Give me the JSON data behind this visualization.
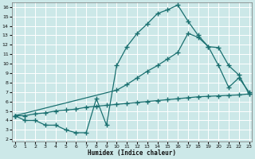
{
  "xlabel": "Humidex (Indice chaleur)",
  "bg_color": "#cce8e8",
  "grid_color": "#ffffff",
  "line_color": "#1a7070",
  "xlim": [
    -0.3,
    23.3
  ],
  "ylim": [
    1.8,
    16.5
  ],
  "xticks": [
    0,
    1,
    2,
    3,
    4,
    5,
    6,
    7,
    8,
    9,
    10,
    11,
    12,
    13,
    14,
    15,
    16,
    17,
    18,
    19,
    20,
    21,
    22,
    23
  ],
  "yticks": [
    2,
    3,
    4,
    5,
    6,
    7,
    8,
    9,
    10,
    11,
    12,
    13,
    14,
    15,
    16
  ],
  "line1_x": [
    0,
    1,
    2,
    3,
    4,
    5,
    6,
    7,
    8,
    9,
    10,
    11,
    12,
    13,
    14,
    15,
    16,
    17,
    18,
    19,
    20,
    21,
    22,
    23
  ],
  "line1_y": [
    4.5,
    4.0,
    4.0,
    3.5,
    3.5,
    3.0,
    2.7,
    2.7,
    6.3,
    3.5,
    9.8,
    11.8,
    13.2,
    14.2,
    15.3,
    15.7,
    16.2,
    14.5,
    13.0,
    11.8,
    9.8,
    7.5,
    8.5,
    7.0
  ],
  "line2_x": [
    0,
    10,
    11,
    12,
    13,
    14,
    15,
    16,
    17,
    18,
    19,
    20,
    21,
    22,
    23
  ],
  "line2_y": [
    4.5,
    7.2,
    7.8,
    8.5,
    9.2,
    9.8,
    10.5,
    11.2,
    13.2,
    12.8,
    11.8,
    11.7,
    9.8,
    8.8,
    6.8
  ],
  "line3_x": [
    0,
    1,
    2,
    3,
    4,
    5,
    6,
    7,
    8,
    9,
    10,
    11,
    12,
    13,
    14,
    15,
    16,
    17,
    18,
    19,
    20,
    21,
    22,
    23
  ],
  "line3_y": [
    4.5,
    4.5,
    4.7,
    4.8,
    5.0,
    5.1,
    5.2,
    5.4,
    5.5,
    5.6,
    5.7,
    5.8,
    5.9,
    6.0,
    6.1,
    6.2,
    6.3,
    6.4,
    6.5,
    6.55,
    6.6,
    6.65,
    6.7,
    6.8
  ]
}
